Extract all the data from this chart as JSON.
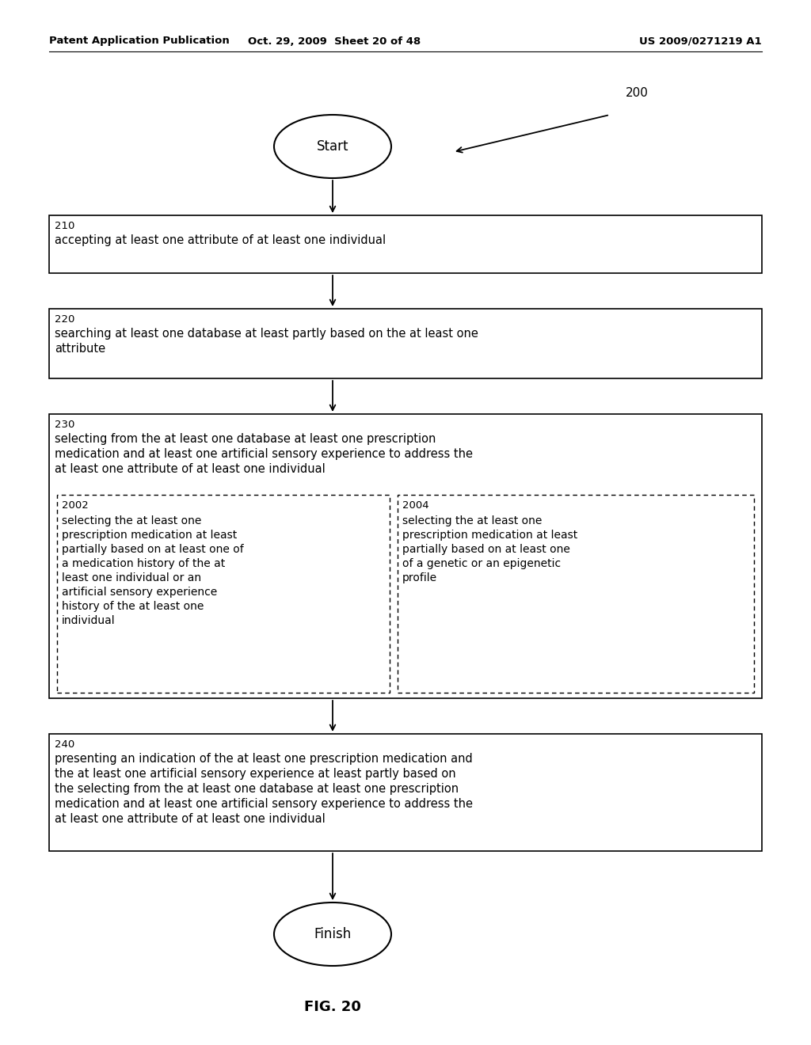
{
  "header_left": "Patent Application Publication",
  "header_mid": "Oct. 29, 2009  Sheet 20 of 48",
  "header_right": "US 2009/0271219 A1",
  "fig_label": "FIG. 20",
  "diagram_ref": "200",
  "start_label": "Start",
  "finish_label": "Finish",
  "box210_num": "210",
  "box210_text": "accepting at least one attribute of at least one individual",
  "box220_num": "220",
  "box220_line1": "searching at least one database at least partly based on the at least one",
  "box220_line2": "attribute",
  "box230_num": "230",
  "box230_line1": "selecting from the at least one database at least one prescription",
  "box230_line2": "medication and at least one artificial sensory experience to address the",
  "box230_line3": "at least one attribute of at least one individual",
  "box2002_num": "2002",
  "box2002_lines": [
    "selecting the at least one",
    "prescription medication at least",
    "partially based on at least one of",
    "a medication history of the at",
    "least one individual or an",
    "artificial sensory experience",
    "history of the at least one",
    "individual"
  ],
  "box2004_num": "2004",
  "box2004_lines": [
    "selecting the at least one",
    "prescription medication at least",
    "partially based on at least one",
    "of a genetic or an epigenetic",
    "profile"
  ],
  "box240_num": "240",
  "box240_line1": "presenting an indication of the at least one prescription medication and",
  "box240_line2": "the at least one artificial sensory experience at least partly based on",
  "box240_line3": "the selecting from the at least one database at least one prescription",
  "box240_line4": "medication and at least one artificial sensory experience to address the",
  "box240_line5": "at least one attribute of at least one individual",
  "bg_color": "#ffffff",
  "line_color": "#000000",
  "text_color": "#000000"
}
